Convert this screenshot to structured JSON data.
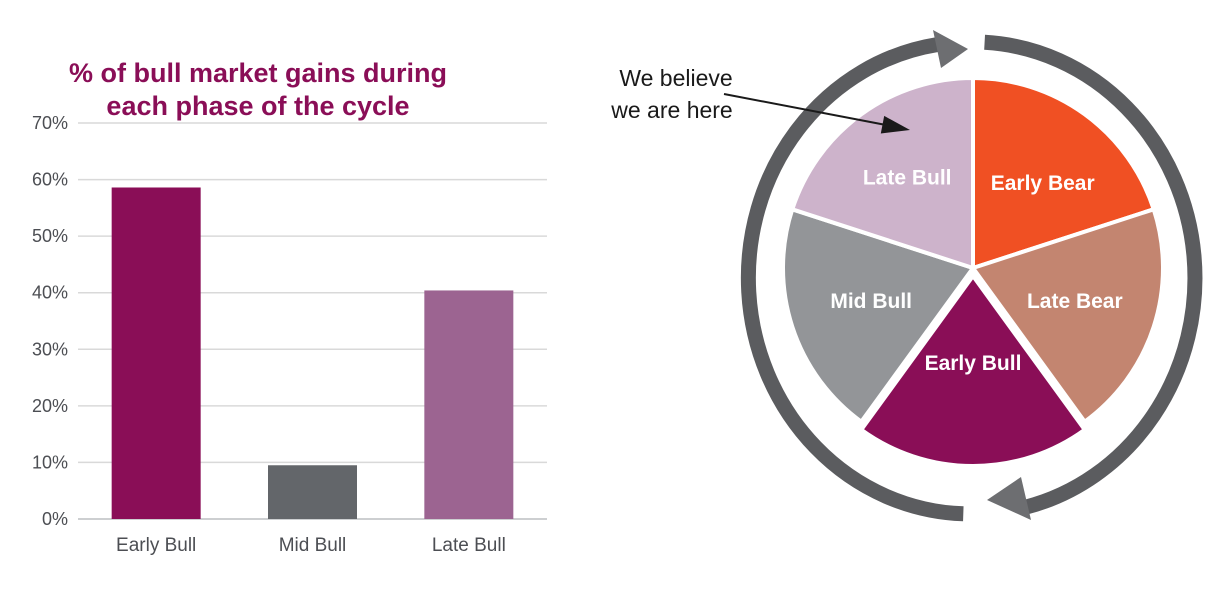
{
  "colors": {
    "title": "#8A0E57",
    "axis_text": "#4C4E53",
    "gridline": "#D9D9D9",
    "baseline": "#CDCFD1",
    "arrow_arc": "#5B5C5F",
    "arrow_head": "#6D6E71",
    "annotation": "#1A1A1A"
  },
  "chart_data": {
    "type": "bar",
    "title": "% of bull market gains during each phase of the cycle",
    "title_lines": [
      "% of bull market gains during",
      "each phase of the cycle"
    ],
    "categories": [
      "Early Bull",
      "Mid Bull",
      "Late Bull"
    ],
    "values": [
      58.6,
      9.5,
      40.4
    ],
    "bar_colors": [
      "#8A0E57",
      "#63666A",
      "#9C6491"
    ],
    "xlabel": "",
    "ylabel": "",
    "ylim": [
      0,
      70
    ],
    "ytick_step": 10,
    "ytick_suffix": "%",
    "grid": true,
    "legend": false
  },
  "cycle_diagram": {
    "type": "pie",
    "title": "",
    "direction": "clockwise",
    "label_color": "#FFFFFF",
    "slices": [
      {
        "label": "Early Bear",
        "value": 20,
        "color": "#F05023"
      },
      {
        "label": "Late Bear",
        "value": 20,
        "color": "#C38570"
      },
      {
        "label": "Early Bull",
        "value": 20,
        "color": "#8A0E57"
      },
      {
        "label": "Mid Bull",
        "value": 20,
        "color": "#939598"
      },
      {
        "label": "Late Bull",
        "value": 20,
        "color": "#CDB3CB"
      }
    ],
    "annotation": {
      "line1": "We believe",
      "line2": "we are here",
      "points_to": "Late Bull"
    }
  }
}
